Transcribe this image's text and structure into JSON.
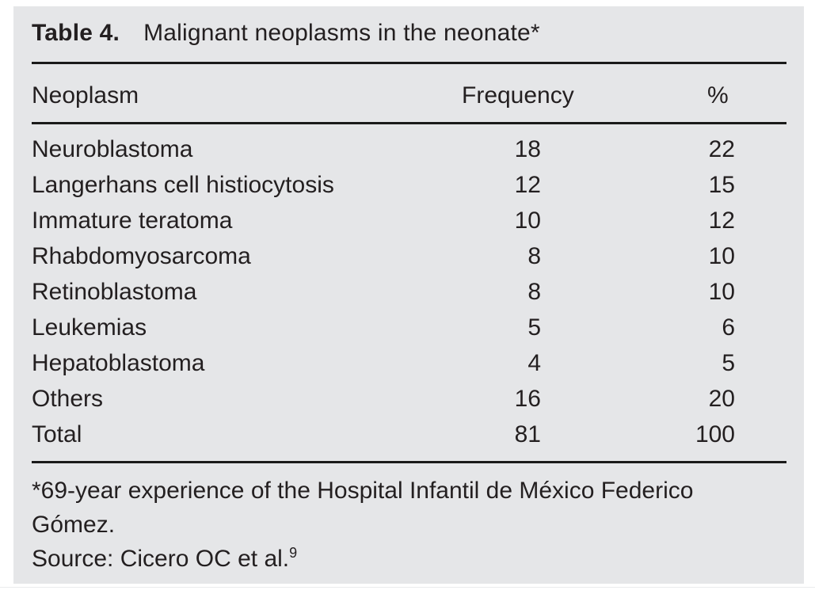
{
  "title": {
    "label": "Table 4.",
    "text": "Malignant neoplasms in the neonate*"
  },
  "table": {
    "columns": [
      "Neoplasm",
      "Frequency",
      "%"
    ],
    "rows": [
      {
        "neoplasm": "Neuroblastoma",
        "frequency": "18",
        "percent": "22"
      },
      {
        "neoplasm": "Langerhans cell histiocytosis",
        "frequency": "12",
        "percent": "15"
      },
      {
        "neoplasm": "Immature teratoma",
        "frequency": "10",
        "percent": "12"
      },
      {
        "neoplasm": "Rhabdomyosarcoma",
        "frequency": "8",
        "percent": "10"
      },
      {
        "neoplasm": "Retinoblastoma",
        "frequency": "8",
        "percent": "10"
      },
      {
        "neoplasm": "Leukemias",
        "frequency": "5",
        "percent": "6"
      },
      {
        "neoplasm": "Hepatoblastoma",
        "frequency": "4",
        "percent": "5"
      },
      {
        "neoplasm": "Others",
        "frequency": "16",
        "percent": "20"
      },
      {
        "neoplasm": "Total",
        "frequency": "81",
        "percent": "100"
      }
    ]
  },
  "footnotes": {
    "line1": "*69-year experience of the Hospital Infantil de México Federico",
    "line2": "Gómez.",
    "source_text": "Source: Cicero OC et al.",
    "source_ref": "9"
  },
  "colors": {
    "panel_bg": "#e5e6e8",
    "text": "#231f20",
    "rule": "#1a1a1a"
  }
}
